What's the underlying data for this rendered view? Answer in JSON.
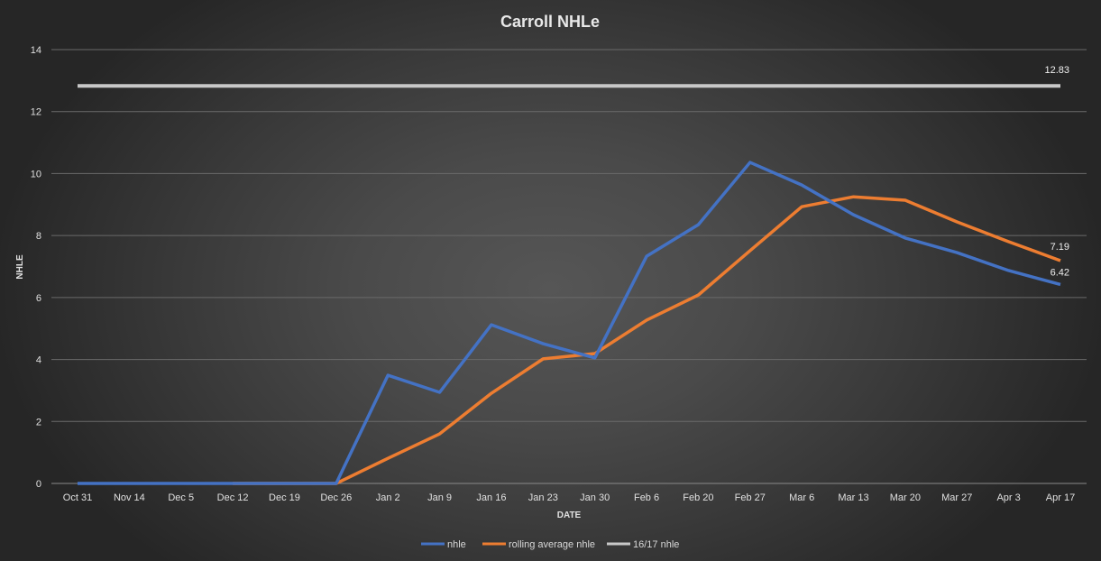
{
  "chart_data": {
    "type": "line",
    "title": "Carroll  NHLe",
    "xlabel": "DATE",
    "ylabel": "NHLE",
    "ylim": [
      0,
      14
    ],
    "yticks": [
      0,
      2,
      4,
      6,
      8,
      10,
      12,
      14
    ],
    "grid": true,
    "legend_position": "bottom",
    "categories": [
      "Oct 31",
      "Nov 14",
      "Dec 5",
      "Dec 12",
      "Dec 19",
      "Dec 26",
      "Jan 2",
      "Jan 9",
      "Jan 16",
      "Jan 23",
      "Jan 30",
      "Feb 6",
      "Feb 20",
      "Feb 27",
      "Mar 6",
      "Mar 13",
      "Mar 20",
      "Mar 27",
      "Apr 3",
      "Apr 17"
    ],
    "series": [
      {
        "name": "nhle",
        "color": "#4472c4",
        "values": [
          0,
          0,
          0,
          0,
          0,
          0,
          3.49,
          2.94,
          5.12,
          4.51,
          4.05,
          7.33,
          8.35,
          10.36,
          9.63,
          8.67,
          7.92,
          7.45,
          6.87,
          6.42
        ],
        "end_label": "6.42"
      },
      {
        "name": "rolling average nhle",
        "color": "#ed7d31",
        "values": [
          null,
          null,
          null,
          0,
          0,
          0,
          0.81,
          1.6,
          2.91,
          4.02,
          4.19,
          5.27,
          6.08,
          7.51,
          8.93,
          9.25,
          9.14,
          8.44,
          7.8,
          7.19
        ],
        "end_label": "7.19"
      },
      {
        "name": "16/17 nhle",
        "color": "#c8c8c8",
        "values": [
          12.83,
          12.83,
          12.83,
          12.83,
          12.83,
          12.83,
          12.83,
          12.83,
          12.83,
          12.83,
          12.83,
          12.83,
          12.83,
          12.83,
          12.83,
          12.83,
          12.83,
          12.83,
          12.83,
          12.83
        ],
        "end_label": "12.83"
      }
    ]
  }
}
